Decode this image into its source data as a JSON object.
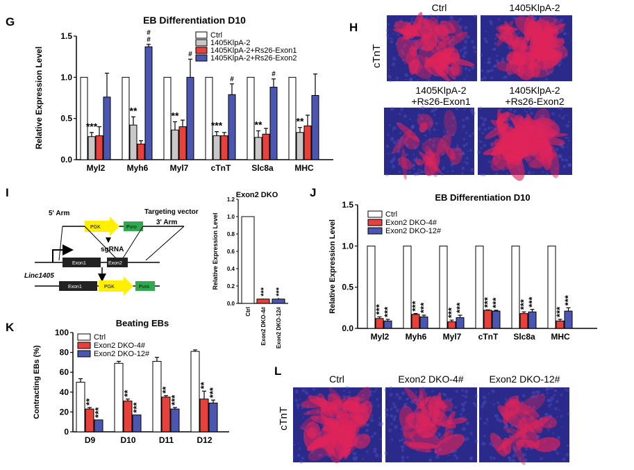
{
  "panels": {
    "G": "G",
    "H": "H",
    "I": "I",
    "J": "J",
    "K": "K",
    "L": "L"
  },
  "colors": {
    "ctrl": "#ffffff",
    "grey": "#c8c8c8",
    "red": "#e8413c",
    "blue": "#4b56b0",
    "fluor_red": "#e0245a",
    "fluor_blue": "#2a2a8a"
  },
  "chart_data": [
    {
      "id": "G",
      "type": "bar",
      "title": "EB Differentiation D10",
      "ylabel": "Relative Expression Level",
      "ylim": [
        0,
        1.5
      ],
      "yticks": [
        "0.0",
        "0.5",
        "1.0",
        "1.5"
      ],
      "categories": [
        "Myl2",
        "Myh6",
        "Myl7",
        "cTnT",
        "Slc8a",
        "MHC"
      ],
      "series": [
        {
          "name": "Ctrl",
          "color": "#ffffff",
          "values": [
            1.0,
            1.0,
            1.0,
            1.0,
            1.0,
            1.0
          ],
          "err": [
            0,
            0,
            0,
            0,
            0,
            0
          ]
        },
        {
          "name": "1405KlpA-2",
          "color": "#c8c8c8",
          "values": [
            0.28,
            0.42,
            0.36,
            0.29,
            0.27,
            0.33
          ],
          "err": [
            0.05,
            0.1,
            0.1,
            0.05,
            0.08,
            0.06
          ]
        },
        {
          "name": "1405KlpA-2+Rs26-Exon1",
          "color": "#e8413c",
          "values": [
            0.29,
            0.19,
            0.4,
            0.29,
            0.31,
            0.41
          ],
          "err": [
            0.11,
            0.04,
            0.08,
            0.04,
            0.07,
            0.13
          ]
        },
        {
          "name": "1405KlpA-2+Rs26-Exon2",
          "color": "#4b56b0",
          "values": [
            0.76,
            1.37,
            1.0,
            0.79,
            0.88,
            0.78
          ],
          "err": [
            0.29,
            0.03,
            0.22,
            0.13,
            0.1,
            0.26
          ]
        }
      ],
      "annotations": [
        {
          "cat": 0,
          "series": 1,
          "text": "***"
        },
        {
          "cat": 1,
          "series": 1,
          "text": "**"
        },
        {
          "cat": 2,
          "series": 1,
          "text": "**"
        },
        {
          "cat": 3,
          "series": 1,
          "text": "***"
        },
        {
          "cat": 4,
          "series": 1,
          "text": "**"
        },
        {
          "cat": 5,
          "series": 1,
          "text": "**"
        },
        {
          "cat": 1,
          "series": 3,
          "text": "#"
        },
        {
          "cat": 1,
          "series": 3,
          "text": "#",
          "stack": 1
        },
        {
          "cat": 2,
          "series": 3,
          "text": "#"
        },
        {
          "cat": 3,
          "series": 3,
          "text": "#"
        },
        {
          "cat": 4,
          "series": 3,
          "text": "#"
        }
      ],
      "legend": "top-right"
    },
    {
      "id": "I-inset",
      "type": "bar",
      "title": "Exon2 DKO",
      "ylabel": "Relative Expression Level",
      "ylim": [
        0,
        1.2
      ],
      "yticks": [
        "0.0",
        "0.2",
        "0.4",
        "0.6",
        "0.8",
        "1.0",
        "1.2"
      ],
      "categories": [
        "Ctrl",
        "Exon2 DKO-4#",
        "Exon2 DKO-12#"
      ],
      "values": [
        1.0,
        0.05,
        0.05
      ],
      "err": [
        0,
        0.005,
        0.015
      ],
      "colors": [
        "#ffffff",
        "#e8413c",
        "#4b56b0"
      ],
      "annotations": [
        "",
        "***",
        "***"
      ]
    },
    {
      "id": "J",
      "type": "bar",
      "title": "EB Differentiation D10",
      "ylabel": "Relative Expression Level",
      "ylim": [
        0,
        1.5
      ],
      "yticks": [
        "0.0",
        "0.5",
        "1.0",
        "1.5"
      ],
      "categories": [
        "Myl2",
        "Myh6",
        "Myl7",
        "cTnT",
        "Slc8a",
        "MHC"
      ],
      "series": [
        {
          "name": "Ctrl",
          "color": "#ffffff",
          "values": [
            1.0,
            1.0,
            1.0,
            1.0,
            1.0,
            1.0
          ],
          "err": [
            0,
            0,
            0,
            0,
            0,
            0
          ]
        },
        {
          "name": "Exon2 DKO-4#",
          "color": "#e8413c",
          "values": [
            0.12,
            0.17,
            0.08,
            0.22,
            0.18,
            0.09
          ],
          "err": [
            0.02,
            0.01,
            0.02,
            0.005,
            0.02,
            0.02
          ]
        },
        {
          "name": "Exon2 DKO-12#",
          "color": "#4b56b0",
          "values": [
            0.09,
            0.14,
            0.13,
            0.21,
            0.2,
            0.21
          ],
          "err": [
            0.02,
            0.02,
            0.03,
            0.01,
            0.03,
            0.04
          ]
        }
      ],
      "annotations_text": "***",
      "legend": "top-left"
    },
    {
      "id": "K",
      "type": "bar",
      "title": "Beating EBs",
      "ylabel": "Contracting EBs (%)",
      "ylim": [
        0,
        100
      ],
      "yticks": [
        "0",
        "20",
        "40",
        "60",
        "80",
        "100"
      ],
      "categories": [
        "D9",
        "D10",
        "D11",
        "D12"
      ],
      "series": [
        {
          "name": "Ctrl",
          "color": "#ffffff",
          "values": [
            50,
            69,
            71,
            81
          ],
          "err": [
            3.5,
            2,
            4,
            1.5
          ]
        },
        {
          "name": "Exon2 DKO-4#",
          "color": "#e8413c",
          "values": [
            23,
            31,
            35,
            33
          ],
          "err": [
            1.5,
            2,
            1.5,
            8
          ]
        },
        {
          "name": "Exon2 DKO-12#",
          "color": "#4b56b0",
          "values": [
            12,
            17,
            23,
            29
          ],
          "err": [
            0,
            0,
            1.5,
            3
          ]
        }
      ],
      "annotations": [
        [
          "**",
          "***"
        ],
        [
          "**",
          "***"
        ],
        [
          "**",
          "***"
        ],
        [
          "**",
          "***"
        ]
      ],
      "legend": "top-left"
    }
  ],
  "panelH": {
    "side_label": "cTnT",
    "labels": [
      "Ctrl",
      "1405KlpA-2",
      "1405KlpA-2\n+Rs26-Exon1",
      "1405KlpA-2\n+Rs26-Exon2"
    ]
  },
  "panelL": {
    "side_label": "cTnT",
    "labels": [
      "Ctrl",
      "Exon2 DKO-4#",
      "Exon2 DKO-12#"
    ]
  },
  "diagram": {
    "arm5": "5' Arm",
    "arm3": "3' Arm",
    "targeting_vector": "Targeting vector",
    "pgk": "PGK",
    "puro_top": "Puro",
    "sgrna": "sgRNA",
    "linc": "Linc1405",
    "exon1": "Exon1",
    "exon2": "Exon2",
    "exon1_b": "Exon1",
    "pgk_b": "PGK",
    "puro_b": "Puro"
  }
}
